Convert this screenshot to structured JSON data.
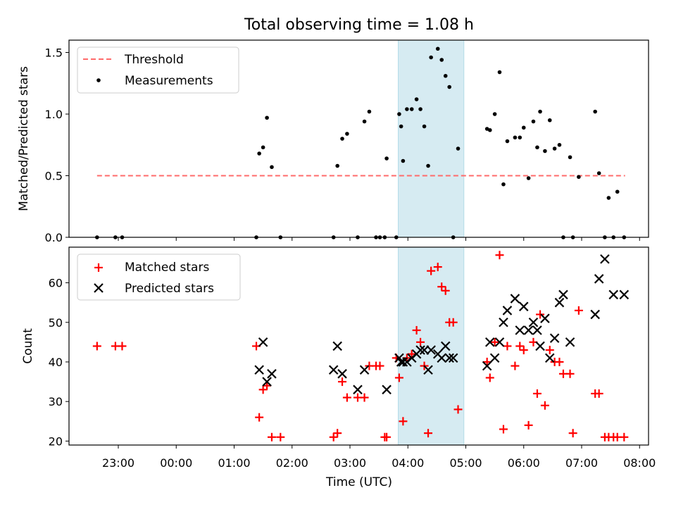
{
  "title": "Total observing time = 1.08 h",
  "colors": {
    "threshold": "#ff6b6b",
    "measurement": "#000000",
    "matched": "#ff0000",
    "predicted": "#000000",
    "span": "#add8e6"
  },
  "chart_data": [
    {
      "type": "scatter",
      "ylabel": "Matched/Predicted stars",
      "ylim": [
        0,
        1.6
      ],
      "yticks": [
        "0.0",
        "0.5",
        "1.0",
        "1.5"
      ],
      "legend": {
        "placement": "top-left",
        "entries": [
          "Threshold",
          "Measurements"
        ]
      },
      "highlight_span": [
        "03:50",
        "04:58"
      ],
      "threshold": {
        "name": "Threshold",
        "value": 0.5,
        "x_range": [
          "22:38",
          "07:45"
        ]
      },
      "series": [
        {
          "name": "Measurements",
          "x": [
            "22:38",
            "22:57",
            "23:04",
            "01:23",
            "01:26",
            "01:30",
            "01:34",
            "01:39",
            "01:48",
            "02:43",
            "02:47",
            "02:52",
            "02:57",
            "03:08",
            "03:15",
            "03:20",
            "03:27",
            "03:31",
            "03:36",
            "03:38",
            "03:48",
            "03:51",
            "03:53",
            "03:55",
            "03:59",
            "04:04",
            "04:09",
            "04:13",
            "04:17",
            "04:21",
            "04:24",
            "04:31",
            "04:35",
            "04:39",
            "04:43",
            "04:47",
            "04:52",
            "05:22",
            "05:25",
            "05:30",
            "05:35",
            "05:39",
            "05:43",
            "05:51",
            "05:56",
            "06:00",
            "06:05",
            "06:10",
            "06:14",
            "06:17",
            "06:22",
            "06:27",
            "06:32",
            "06:37",
            "06:41",
            "06:48",
            "06:51",
            "06:57",
            "07:14",
            "07:18",
            "07:24",
            "07:28",
            "07:33",
            "07:37",
            "07:44"
          ],
          "y": [
            0.0,
            0.0,
            0.0,
            0.0,
            0.68,
            0.73,
            0.97,
            0.57,
            0.0,
            0.0,
            0.58,
            0.8,
            0.84,
            0.0,
            0.94,
            1.02,
            0.0,
            0.0,
            0.0,
            0.64,
            0.0,
            1.0,
            0.9,
            0.62,
            1.04,
            1.04,
            1.12,
            1.04,
            0.9,
            0.58,
            1.46,
            1.53,
            1.44,
            1.31,
            1.22,
            0.0,
            0.72,
            0.88,
            0.87,
            1.0,
            1.34,
            0.43,
            0.78,
            0.81,
            0.81,
            0.89,
            0.48,
            0.94,
            0.73,
            1.02,
            0.7,
            0.95,
            0.72,
            0.75,
            0.0,
            0.65,
            0.0,
            0.49,
            1.02,
            0.52,
            0.0,
            0.32,
            0.0,
            0.37,
            0.0
          ]
        }
      ]
    },
    {
      "type": "scatter",
      "xlabel": "Time (UTC)",
      "ylabel": "Count",
      "ylim": [
        19,
        69
      ],
      "yticks": [
        "20",
        "30",
        "40",
        "50",
        "60"
      ],
      "xticks": [
        "23:00",
        "00:00",
        "01:00",
        "02:00",
        "03:00",
        "04:00",
        "05:00",
        "06:00",
        "07:00",
        "08:00"
      ],
      "legend": {
        "placement": "top-left",
        "entries": [
          "Matched stars",
          "Predicted stars"
        ]
      },
      "highlight_span": [
        "03:50",
        "04:58"
      ],
      "series": [
        {
          "name": "Matched stars",
          "x": [
            "22:38",
            "22:57",
            "23:04",
            "01:23",
            "01:26",
            "01:30",
            "01:34",
            "01:39",
            "01:48",
            "02:43",
            "02:47",
            "02:52",
            "02:57",
            "03:08",
            "03:15",
            "03:20",
            "03:27",
            "03:31",
            "03:36",
            "03:38",
            "03:48",
            "03:51",
            "03:55",
            "03:59",
            "04:04",
            "04:09",
            "04:13",
            "04:17",
            "04:21",
            "04:24",
            "04:31",
            "04:35",
            "04:39",
            "04:43",
            "04:47",
            "04:52",
            "05:22",
            "05:25",
            "05:30",
            "05:35",
            "05:39",
            "05:43",
            "05:51",
            "05:56",
            "06:00",
            "06:05",
            "06:10",
            "06:14",
            "06:17",
            "06:22",
            "06:27",
            "06:32",
            "06:37",
            "06:41",
            "06:48",
            "06:51",
            "06:57",
            "07:14",
            "07:18",
            "07:24",
            "07:28",
            "07:33",
            "07:37",
            "07:44"
          ],
          "y": [
            44,
            44,
            44,
            44,
            26,
            33,
            34,
            21,
            21,
            21,
            22,
            35,
            31,
            31,
            31,
            39,
            39,
            39,
            21,
            21,
            41,
            36,
            25,
            41,
            42,
            48,
            45,
            39,
            22,
            63,
            64,
            59,
            58,
            50,
            50,
            28,
            40,
            36,
            45,
            67,
            23,
            44,
            39,
            44,
            43,
            24,
            45,
            32,
            52,
            29,
            43,
            40,
            40,
            37,
            37,
            22,
            53,
            32,
            32,
            21,
            21,
            21,
            21,
            21
          ]
        },
        {
          "name": "Predicted stars",
          "x": [
            "01:26",
            "01:30",
            "01:34",
            "01:39",
            "02:43",
            "02:47",
            "02:52",
            "03:08",
            "03:15",
            "03:38",
            "03:51",
            "03:53",
            "03:55",
            "03:59",
            "04:04",
            "04:09",
            "04:13",
            "04:17",
            "04:21",
            "04:24",
            "04:31",
            "04:35",
            "04:39",
            "04:43",
            "04:47",
            "05:22",
            "05:25",
            "05:30",
            "05:35",
            "05:39",
            "05:43",
            "05:51",
            "05:56",
            "06:00",
            "06:05",
            "06:10",
            "06:14",
            "06:17",
            "06:22",
            "06:27",
            "06:32",
            "06:37",
            "06:41",
            "06:48",
            "07:14",
            "07:18",
            "07:24",
            "07:33",
            "07:44"
          ],
          "y": [
            38,
            45,
            35,
            37,
            38,
            44,
            37,
            33,
            38,
            33,
            41,
            40,
            40,
            40,
            41,
            42,
            43,
            43,
            38,
            43,
            42,
            41,
            44,
            41,
            41,
            39,
            45,
            41,
            45,
            50,
            53,
            56,
            48,
            54,
            48,
            50,
            48,
            44,
            51,
            41,
            46,
            55,
            57,
            45,
            52,
            61,
            66,
            57,
            57
          ]
        }
      ]
    }
  ]
}
